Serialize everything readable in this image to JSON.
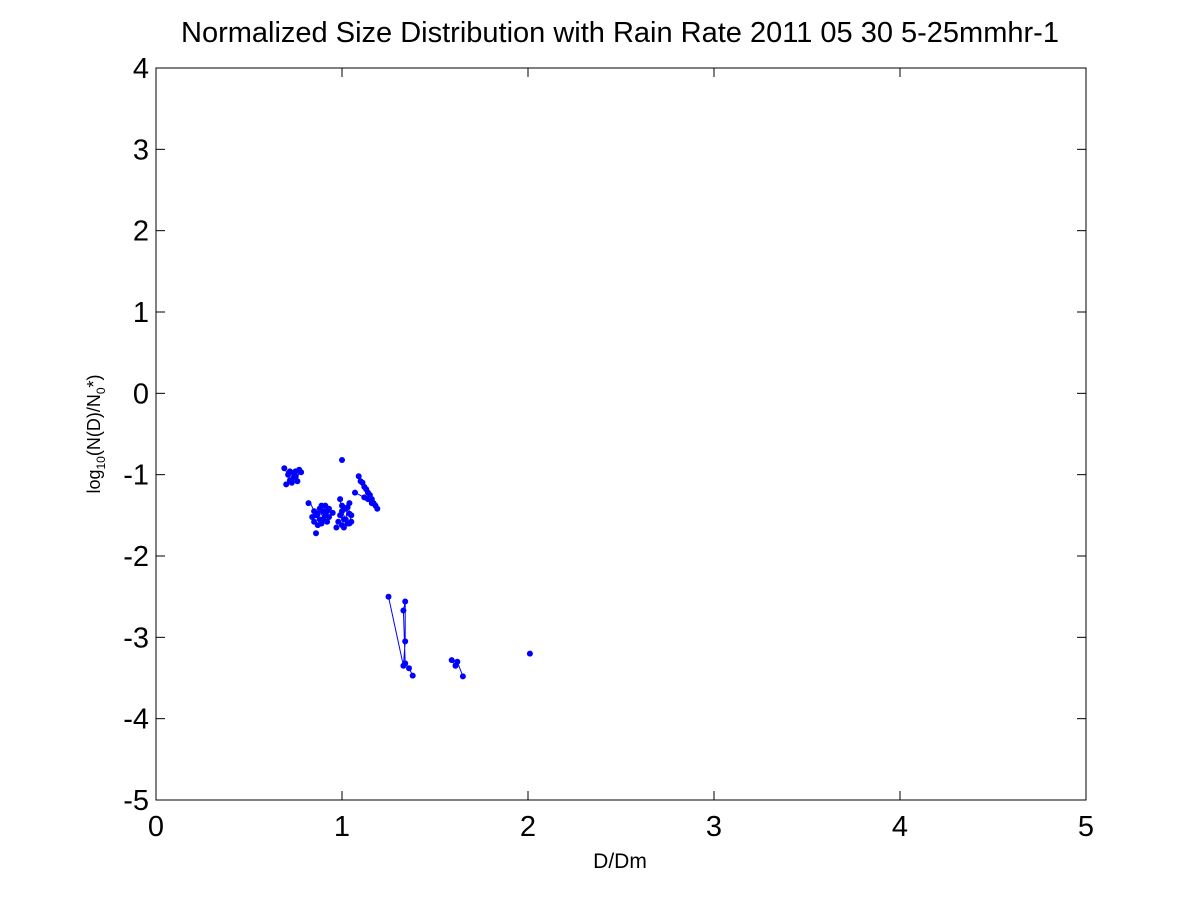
{
  "chart_data": {
    "type": "scatter",
    "title": "Normalized Size Distribution with Rain Rate 2011 05 30 5-25mmhr-1",
    "xlabel": "D/Dm",
    "ylabel": {
      "prefix": "log",
      "sub1": "10",
      "middle": "(N(D)/N",
      "sub2": "0",
      "suffix": "*)"
    },
    "xlim": [
      0,
      5
    ],
    "ylim": [
      -5,
      4
    ],
    "xticks": [
      "0",
      "1",
      "2",
      "3",
      "4",
      "5"
    ],
    "yticks": [
      "4",
      "3",
      "2",
      "1",
      "0",
      "-1",
      "-2",
      "-3",
      "-4",
      "-5"
    ],
    "grid": false,
    "legend": "none",
    "marker_color": "#0000ff",
    "series": [
      {
        "lines": [
          [
            [
              0.69,
              -0.92
            ],
            [
              0.71,
              -1.0
            ],
            [
              0.72,
              -1.07
            ],
            [
              0.74,
              -0.96
            ],
            [
              0.75,
              -1.02
            ],
            [
              0.77,
              -0.94
            ],
            [
              0.76,
              -1.08
            ]
          ],
          [
            [
              0.83,
              -1.35
            ],
            [
              0.86,
              -1.5
            ],
            [
              0.88,
              -1.42
            ],
            [
              0.9,
              -1.55
            ],
            [
              0.92,
              -1.45
            ],
            [
              0.91,
              -1.38
            ],
            [
              0.89,
              -1.6
            ],
            [
              0.87,
              -1.48
            ]
          ],
          [
            [
              0.99,
              -1.3
            ],
            [
              1.0,
              -1.45
            ],
            [
              1.02,
              -1.55
            ],
            [
              1.03,
              -1.4
            ],
            [
              1.05,
              -1.5
            ],
            [
              1.04,
              -1.6
            ],
            [
              1.01,
              -1.65
            ]
          ],
          [
            [
              1.09,
              -1.02
            ],
            [
              1.11,
              -1.1
            ],
            [
              1.13,
              -1.18
            ],
            [
              1.15,
              -1.25
            ],
            [
              1.16,
              -1.3
            ],
            [
              1.18,
              -1.38
            ],
            [
              1.19,
              -1.42
            ],
            [
              1.17,
              -1.35
            ],
            [
              1.14,
              -1.3
            ],
            [
              1.12,
              -1.28
            ],
            [
              1.07,
              -1.22
            ]
          ],
          [
            [
              1.25,
              -2.5
            ],
            [
              1.33,
              -3.35
            ],
            [
              1.34,
              -3.05
            ],
            [
              1.34,
              -2.56
            ],
            [
              1.33,
              -2.67
            ],
            [
              1.34,
              -3.32
            ],
            [
              1.36,
              -3.38
            ],
            [
              1.38,
              -3.47
            ]
          ],
          [
            [
              1.59,
              -3.28
            ],
            [
              1.61,
              -3.35
            ],
            [
              1.62,
              -3.3
            ],
            [
              1.65,
              -3.48
            ]
          ]
        ],
        "points": [
          [
            0.69,
            -0.92
          ],
          [
            0.71,
            -1.0
          ],
          [
            0.72,
            -1.07
          ],
          [
            0.72,
            -0.96
          ],
          [
            0.73,
            -1.1
          ],
          [
            0.74,
            -0.98
          ],
          [
            0.74,
            -1.04
          ],
          [
            0.75,
            -1.02
          ],
          [
            0.75,
            -0.96
          ],
          [
            0.76,
            -1.08
          ],
          [
            0.77,
            -0.94
          ],
          [
            0.7,
            -1.12
          ],
          [
            0.78,
            -0.97
          ],
          [
            0.82,
            -1.35
          ],
          [
            0.84,
            -1.52
          ],
          [
            0.85,
            -1.58
          ],
          [
            0.85,
            -1.45
          ],
          [
            0.86,
            -1.5
          ],
          [
            0.86,
            -1.72
          ],
          [
            0.87,
            -1.48
          ],
          [
            0.87,
            -1.62
          ],
          [
            0.88,
            -1.42
          ],
          [
            0.88,
            -1.55
          ],
          [
            0.89,
            -1.6
          ],
          [
            0.89,
            -1.38
          ],
          [
            0.9,
            -1.55
          ],
          [
            0.9,
            -1.45
          ],
          [
            0.91,
            -1.38
          ],
          [
            0.91,
            -1.5
          ],
          [
            0.92,
            -1.45
          ],
          [
            0.92,
            -1.58
          ],
          [
            0.93,
            -1.42
          ],
          [
            0.93,
            -1.52
          ],
          [
            0.95,
            -1.47
          ],
          [
            0.97,
            -1.65
          ],
          [
            0.98,
            -1.58
          ],
          [
            0.99,
            -1.3
          ],
          [
            0.99,
            -1.5
          ],
          [
            1.0,
            -1.45
          ],
          [
            1.0,
            -1.38
          ],
          [
            1.0,
            -1.62
          ],
          [
            1.0,
            -0.82
          ],
          [
            1.01,
            -1.65
          ],
          [
            1.01,
            -1.55
          ],
          [
            1.02,
            -1.55
          ],
          [
            1.02,
            -1.42
          ],
          [
            1.03,
            -1.4
          ],
          [
            1.03,
            -1.6
          ],
          [
            1.04,
            -1.6
          ],
          [
            1.04,
            -1.48
          ],
          [
            1.05,
            -1.5
          ],
          [
            1.05,
            -1.58
          ],
          [
            1.04,
            -1.35
          ],
          [
            1.07,
            -1.22
          ],
          [
            1.09,
            -1.02
          ],
          [
            1.1,
            -1.08
          ],
          [
            1.11,
            -1.1
          ],
          [
            1.12,
            -1.28
          ],
          [
            1.12,
            -1.15
          ],
          [
            1.13,
            -1.18
          ],
          [
            1.14,
            -1.3
          ],
          [
            1.14,
            -1.22
          ],
          [
            1.15,
            -1.25
          ],
          [
            1.16,
            -1.3
          ],
          [
            1.16,
            -1.35
          ],
          [
            1.17,
            -1.35
          ],
          [
            1.18,
            -1.38
          ],
          [
            1.19,
            -1.42
          ],
          [
            1.25,
            -2.5
          ],
          [
            1.33,
            -2.67
          ],
          [
            1.34,
            -2.56
          ],
          [
            1.34,
            -3.05
          ],
          [
            1.33,
            -3.35
          ],
          [
            1.34,
            -3.32
          ],
          [
            1.36,
            -3.38
          ],
          [
            1.38,
            -3.47
          ],
          [
            1.59,
            -3.28
          ],
          [
            1.61,
            -3.35
          ],
          [
            1.62,
            -3.3
          ],
          [
            1.65,
            -3.48
          ],
          [
            2.01,
            -3.2
          ]
        ]
      }
    ]
  }
}
